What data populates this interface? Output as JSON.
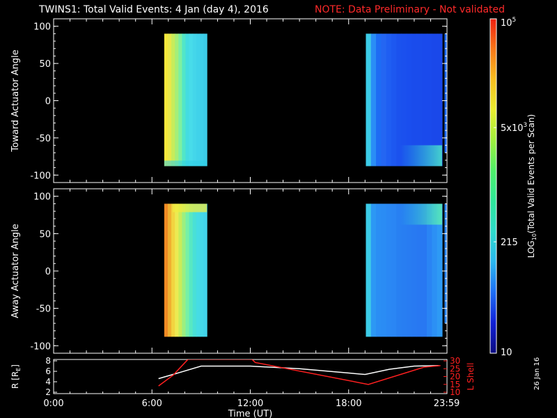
{
  "header": {
    "title": "TWINS1: Total Valid Events:  4 Jan (day   4), 2016",
    "note": "NOTE: Data Preliminary - Not validated",
    "note_color": "#ff2a2a"
  },
  "stamp": "26 Jan 16",
  "chart_data": [
    {
      "type": "heatmap",
      "panel": "top",
      "ylabel": "Toward Actuator Angle",
      "ylim": [
        -110,
        110
      ],
      "yticks": [
        100,
        50,
        0,
        -50,
        -100
      ],
      "xlim": [
        0,
        24
      ],
      "blocks": [
        {
          "x_start": 6.75,
          "x_end": 9.35,
          "y_range": [
            -88,
            90
          ],
          "level": "high",
          "columns": [
            "#f6e83c",
            "#e8e84a",
            "#c8ec5a",
            "#a6ee78",
            "#7ef0a0",
            "#52e6c8",
            "#44dce0",
            "#48dcea",
            "#44d6ea",
            "#40d2ea",
            "#3ed0ea",
            "#3ccce8"
          ]
        },
        {
          "x_start": 19.05,
          "x_end": 23.7,
          "y_range": [
            -88,
            90
          ],
          "level": "low",
          "columns": [
            "#3ccce8",
            "#2a8ef6",
            "#1e6cf4",
            "#2466f2",
            "#1f5ef2",
            "#1d58f0",
            "#1b52ee",
            "#1b50ee",
            "#1a4eee",
            "#1a4cec",
            "#1a4cec",
            "#1a4aec",
            "#1a4aec",
            "#1a48ea",
            "#1a48ea"
          ]
        },
        {
          "x_start": 23.85,
          "x_end": 23.95,
          "y_range": [
            -70,
            90
          ],
          "level": "low",
          "columns": [
            "#1e6cf4"
          ]
        }
      ]
    },
    {
      "type": "heatmap",
      "panel": "bottom",
      "ylabel": "Away Actuator Angle",
      "ylim": [
        -110,
        110
      ],
      "yticks": [
        100,
        50,
        0,
        -50,
        -100
      ],
      "xlim": [
        0,
        24
      ],
      "blocks": [
        {
          "x_start": 6.75,
          "x_end": 9.35,
          "y_range": [
            -88,
            90
          ],
          "level": "high",
          "columns": [
            "#f08a24",
            "#f0b030",
            "#f2d440",
            "#ecea52",
            "#c8ec5a",
            "#9cef80",
            "#76f0a6",
            "#58e8c2",
            "#4ae0d6",
            "#46dce4",
            "#44d8e8",
            "#42d4ea"
          ]
        },
        {
          "x_start": 19.05,
          "x_end": 23.7,
          "y_range": [
            -88,
            90
          ],
          "level": "low",
          "columns": [
            "#3ccce8",
            "#2c98f4",
            "#2a8ef4",
            "#2a8cf4",
            "#2a88f4",
            "#2a86f4",
            "#2880f2",
            "#287ef2",
            "#287cf2",
            "#287af2",
            "#2878f2",
            "#2878f2",
            "#2a84f4",
            "#2c90f4",
            "#2e9af4"
          ]
        },
        {
          "x_start": 23.85,
          "x_end": 23.95,
          "y_range": [
            -70,
            90
          ],
          "level": "low",
          "columns": [
            "#2a88f4"
          ]
        }
      ]
    },
    {
      "type": "line",
      "panel": "orbit",
      "ylabel": "R [RE]",
      "ylabel_right": "L Shell",
      "ylim": [
        2,
        8
      ],
      "yticks": [
        8,
        6,
        4,
        2
      ],
      "ylim_right": [
        10,
        30
      ],
      "yticks_right": [
        30,
        25,
        20,
        15,
        10
      ],
      "xlim": [
        0,
        24
      ],
      "xticks": [
        {
          "value": 0,
          "label": "0:00"
        },
        {
          "value": 6,
          "label": "6:00"
        },
        {
          "value": 12,
          "label": "12:00"
        },
        {
          "value": 18,
          "label": "18:00"
        },
        {
          "value": 23.98,
          "label": "23:59"
        }
      ],
      "xlabel": "Time (UT)",
      "series": [
        {
          "axis": "left",
          "color": "#ffffff",
          "x": [
            6.4,
            7.5,
            9.0,
            12.0,
            15.0,
            19.0,
            20.5,
            22.0,
            23.5
          ],
          "y": [
            4.6,
            5.6,
            7.0,
            7.0,
            6.5,
            5.4,
            6.4,
            7.0,
            7.1
          ]
        },
        {
          "axis": "right",
          "color": "#ff2020",
          "x": [
            6.4,
            7.3,
            8.2,
            12.1,
            12.3,
            19.2,
            22.6,
            23.6
          ],
          "y": [
            14,
            21,
            31,
            31,
            29,
            15,
            26,
            27
          ]
        }
      ]
    }
  ],
  "colorbar": {
    "label": "LOG10(Total Valid Events per Scan)",
    "ticks": [
      "10^5",
      "5x10^3",
      "215",
      "10"
    ],
    "ticks_display": [
      {
        "base": "10",
        "sup": "5"
      },
      {
        "base": "5x10",
        "sup": "3"
      },
      {
        "base": "215",
        "sup": ""
      },
      {
        "base": "10",
        "sup": ""
      }
    ],
    "tick_values": [
      100000,
      5000,
      215,
      10
    ],
    "range": [
      10,
      100000
    ],
    "scale": "log",
    "colors": [
      "#0b0b80",
      "#1020d8",
      "#1e6ef4",
      "#2cb8f0",
      "#2edccc",
      "#2ee89a",
      "#4ef06a",
      "#9ef03e",
      "#e8ec30",
      "#f8c020",
      "#f87818",
      "#f02010"
    ]
  }
}
